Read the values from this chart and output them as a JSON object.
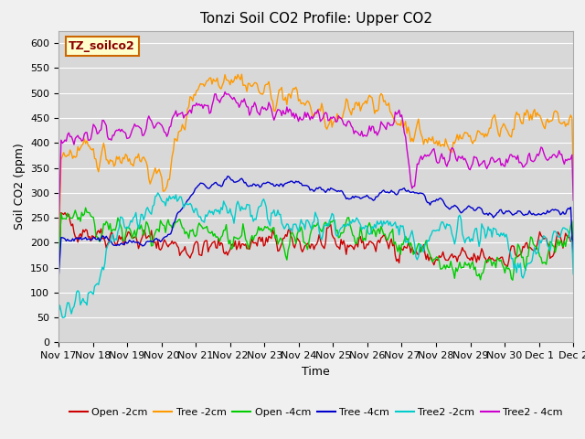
{
  "title": "Tonzi Soil CO2 Profile: Upper CO2",
  "ylabel": "Soil CO2 (ppm)",
  "xlabel": "Time",
  "watermark": "TZ_soilco2",
  "ylim": [
    0,
    625
  ],
  "yticks": [
    0,
    50,
    100,
    150,
    200,
    250,
    300,
    350,
    400,
    450,
    500,
    550,
    600
  ],
  "x_labels": [
    "Nov 17",
    "Nov 18",
    "Nov 19",
    "Nov 20",
    "Nov 21",
    "Nov 22",
    "Nov 23",
    "Nov 24",
    "Nov 25",
    "Nov 26",
    "Nov 27",
    "Nov 28",
    "Nov 29",
    "Nov 30",
    "Dec 1",
    "Dec 2"
  ],
  "series": {
    "Open_2cm": {
      "color": "#cc0000",
      "label": "Open -2cm"
    },
    "Tree_2cm": {
      "color": "#ff9900",
      "label": "Tree -2cm"
    },
    "Open_4cm": {
      "color": "#00cc00",
      "label": "Open -4cm"
    },
    "Tree_4cm": {
      "color": "#0000cc",
      "label": "Tree -4cm"
    },
    "Tree2_2cm": {
      "color": "#00cccc",
      "label": "Tree2 -2cm"
    },
    "Tree2_4cm": {
      "color": "#cc00cc",
      "label": "Tree2 - 4cm"
    }
  },
  "fig_bg_color": "#f0f0f0",
  "plot_bg_color": "#d8d8d8",
  "title_fontsize": 11,
  "label_fontsize": 9,
  "tick_fontsize": 8,
  "legend_fontsize": 8,
  "linewidth": 1.0
}
